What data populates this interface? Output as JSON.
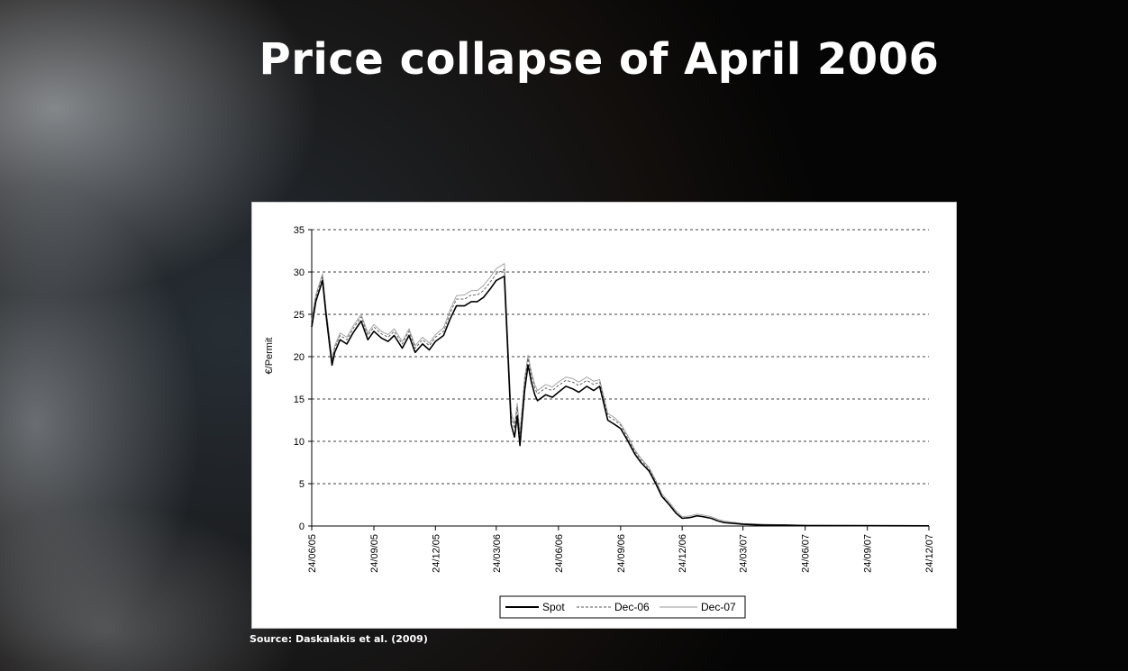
{
  "slide": {
    "title": "Price collapse of April 2006",
    "source": "Source: Daskalakis et al. (2009)"
  },
  "colors": {
    "background": "#050505",
    "title_text": "#ffffff",
    "chart_background": "#ffffff",
    "spot": "#000000",
    "dec06": "#555555",
    "dec07": "#9a9a9a"
  },
  "chart_data": {
    "type": "line",
    "title": "",
    "xlabel": "",
    "ylabel": "€/Permit",
    "ylim": [
      0,
      35
    ],
    "yticks": [
      0,
      5,
      10,
      15,
      20,
      25,
      30,
      35
    ],
    "xticks": [
      "24/06/05",
      "24/09/05",
      "24/12/05",
      "24/03/06",
      "24/06/06",
      "24/09/06",
      "24/12/06",
      "24/03/07",
      "24/06/07",
      "24/09/07",
      "24/12/07"
    ],
    "x_range": [
      "24/06/05",
      "24/12/07"
    ],
    "grid": "horizontal dashed",
    "legend_position": "bottom",
    "series": [
      {
        "name": "Spot",
        "x": [
          "24/06/05",
          "30/06/05",
          "10/07/05",
          "15/07/05",
          "24/07/05",
          "28/07/05",
          "05/08/05",
          "15/08/05",
          "24/08/05",
          "05/09/05",
          "15/09/05",
          "24/09/05",
          "05/10/05",
          "15/10/05",
          "24/10/05",
          "05/11/05",
          "15/11/05",
          "24/11/05",
          "05/12/05",
          "15/12/05",
          "24/12/05",
          "05/01/06",
          "15/01/06",
          "24/01/06",
          "05/02/06",
          "15/02/06",
          "24/02/06",
          "05/03/06",
          "15/03/06",
          "24/03/06",
          "05/04/06",
          "15/04/06",
          "20/04/06",
          "24/04/06",
          "28/04/06",
          "05/05/06",
          "10/05/06",
          "15/05/06",
          "20/05/06",
          "24/05/06",
          "05/06/06",
          "15/06/06",
          "24/06/06",
          "05/07/06",
          "15/07/06",
          "24/07/06",
          "05/08/06",
          "15/08/06",
          "24/08/06",
          "05/09/06",
          "15/09/06",
          "24/09/06",
          "05/10/06",
          "15/10/06",
          "24/10/06",
          "05/11/06",
          "15/11/06",
          "24/11/06",
          "05/12/06",
          "15/12/06",
          "24/12/06",
          "05/01/07",
          "15/01/07",
          "24/01/07",
          "05/02/07",
          "15/02/07",
          "24/02/07",
          "24/03/07",
          "24/04/07",
          "24/05/07",
          "24/06/07",
          "24/09/07",
          "24/12/07"
        ],
        "y": [
          23.5,
          26.5,
          29.0,
          25.0,
          19.0,
          20.5,
          22.0,
          21.5,
          22.8,
          24.2,
          22.0,
          23.0,
          22.2,
          21.8,
          22.5,
          21.0,
          22.5,
          20.5,
          21.5,
          20.8,
          21.8,
          22.5,
          24.5,
          26.0,
          26.0,
          26.5,
          26.5,
          27.0,
          28.0,
          29.0,
          29.5,
          12.0,
          10.5,
          13.0,
          9.5,
          16.0,
          19.0,
          17.0,
          15.5,
          14.8,
          15.5,
          15.2,
          15.8,
          16.5,
          16.2,
          15.8,
          16.5,
          16.0,
          16.5,
          12.5,
          12.0,
          11.5,
          10.0,
          8.5,
          7.5,
          6.5,
          5.0,
          3.5,
          2.5,
          1.5,
          0.9,
          1.0,
          1.2,
          1.1,
          0.9,
          0.6,
          0.4,
          0.2,
          0.1,
          0.1,
          0.05,
          0.03,
          0.02
        ]
      },
      {
        "name": "Dec-06",
        "x": [
          "24/06/05",
          "30/06/05",
          "10/07/05",
          "15/07/05",
          "24/07/05",
          "28/07/05",
          "05/08/05",
          "15/08/05",
          "24/08/05",
          "05/09/05",
          "15/09/05",
          "24/09/05",
          "05/10/05",
          "15/10/05",
          "24/10/05",
          "05/11/05",
          "15/11/05",
          "24/11/05",
          "05/12/05",
          "15/12/05",
          "24/12/05",
          "05/01/06",
          "15/01/06",
          "24/01/06",
          "05/02/06",
          "15/02/06",
          "24/02/06",
          "05/03/06",
          "15/03/06",
          "24/03/06",
          "05/04/06",
          "15/04/06",
          "20/04/06",
          "24/04/06",
          "28/04/06",
          "05/05/06",
          "10/05/06",
          "15/05/06",
          "20/05/06",
          "24/05/06",
          "05/06/06",
          "15/06/06",
          "24/06/06",
          "05/07/06",
          "15/07/06",
          "24/07/06",
          "05/08/06",
          "15/08/06",
          "24/08/06",
          "05/09/06",
          "15/09/06",
          "24/09/06",
          "05/10/06",
          "15/10/06",
          "24/10/06",
          "05/11/06",
          "15/11/06",
          "24/11/06",
          "05/12/06",
          "15/12/06"
        ],
        "y": [
          24.0,
          27.0,
          29.5,
          25.5,
          19.5,
          21.0,
          22.5,
          22.0,
          23.3,
          24.7,
          22.5,
          23.5,
          22.7,
          22.3,
          23.0,
          21.5,
          23.0,
          21.0,
          22.0,
          21.3,
          22.3,
          23.0,
          25.2,
          26.8,
          26.8,
          27.3,
          27.3,
          27.8,
          28.8,
          29.8,
          30.3,
          13.0,
          11.5,
          14.0,
          10.5,
          17.0,
          19.8,
          17.8,
          16.3,
          15.6,
          16.3,
          16.0,
          16.6,
          17.2,
          17.0,
          16.6,
          17.2,
          16.7,
          17.0,
          13.0,
          12.5,
          11.9,
          10.3,
          8.8,
          7.8,
          6.7,
          5.2,
          3.6,
          2.6,
          1.6
        ]
      },
      {
        "name": "Dec-07",
        "x": [
          "24/06/05",
          "30/06/05",
          "10/07/05",
          "15/07/05",
          "24/07/05",
          "28/07/05",
          "05/08/05",
          "15/08/05",
          "24/08/05",
          "05/09/05",
          "15/09/05",
          "24/09/05",
          "05/10/05",
          "15/10/05",
          "24/10/05",
          "05/11/05",
          "15/11/05",
          "24/11/05",
          "05/12/05",
          "15/12/05",
          "24/12/05",
          "05/01/06",
          "15/01/06",
          "24/01/06",
          "05/02/06",
          "15/02/06",
          "24/02/06",
          "05/03/06",
          "15/03/06",
          "24/03/06",
          "05/04/06",
          "15/04/06",
          "20/04/06",
          "24/04/06",
          "28/04/06",
          "05/05/06",
          "10/05/06",
          "15/05/06",
          "20/05/06",
          "24/05/06",
          "05/06/06",
          "15/06/06",
          "24/06/06",
          "05/07/06",
          "15/07/06",
          "24/07/06",
          "05/08/06",
          "15/08/06",
          "24/08/06",
          "05/09/06",
          "15/09/06",
          "24/09/06",
          "05/10/06",
          "15/10/06",
          "24/10/06",
          "05/11/06",
          "15/11/06",
          "24/11/06",
          "05/12/06",
          "15/12/06",
          "24/12/06",
          "05/01/07",
          "15/01/07",
          "24/01/07",
          "05/02/07",
          "15/02/07",
          "24/02/07",
          "24/03/07",
          "24/04/07",
          "24/05/07",
          "24/06/07",
          "24/09/07",
          "24/12/07"
        ],
        "y": [
          24.3,
          27.3,
          29.8,
          25.8,
          19.8,
          21.3,
          22.8,
          22.3,
          23.6,
          25.0,
          22.8,
          23.8,
          23.0,
          22.6,
          23.3,
          21.8,
          23.3,
          21.3,
          22.3,
          21.6,
          22.6,
          23.4,
          25.6,
          27.2,
          27.3,
          27.8,
          27.8,
          28.4,
          29.4,
          30.4,
          31.0,
          13.5,
          12.0,
          14.5,
          11.0,
          17.4,
          20.2,
          18.2,
          16.7,
          16.0,
          16.7,
          16.4,
          17.0,
          17.6,
          17.4,
          17.0,
          17.6,
          17.1,
          17.3,
          13.3,
          12.8,
          12.1,
          10.6,
          9.0,
          8.0,
          6.9,
          5.4,
          3.8,
          2.8,
          1.8,
          1.1,
          1.2,
          1.4,
          1.3,
          1.1,
          0.8,
          0.6,
          0.3,
          0.2,
          0.15,
          0.1,
          0.08,
          0.06
        ]
      }
    ]
  }
}
